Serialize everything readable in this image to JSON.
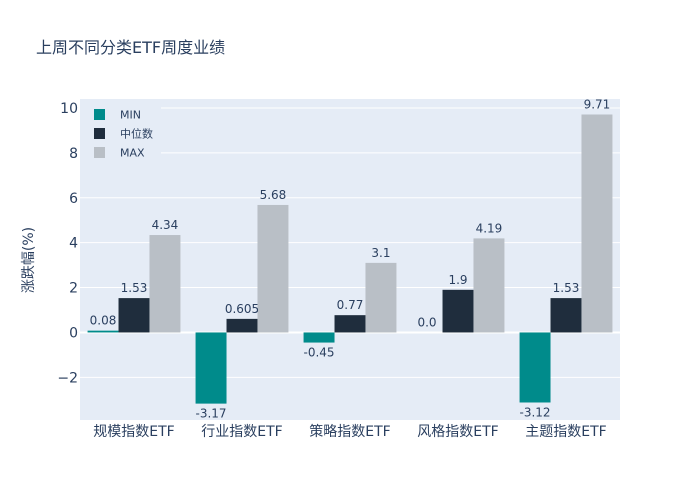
{
  "chart_data": {
    "type": "bar",
    "title": "上周不同分类ETF周度业绩",
    "xlabel": "",
    "ylabel": "涨跌幅(%)",
    "ylim": [
      -3.9,
      10.4
    ],
    "yticks": [
      -2,
      0,
      2,
      4,
      6,
      8,
      10
    ],
    "ytick_labels": [
      "−2",
      "0",
      "2",
      "4",
      "6",
      "8",
      "10"
    ],
    "grid": true,
    "legend_position": "top-left",
    "categories": [
      "规模指数ETF",
      "行业指数ETF",
      "策略指数ETF",
      "风格指数ETF",
      "主题指数ETF"
    ],
    "series": [
      {
        "name": "MIN",
        "color": "#008b8b",
        "values": [
          0.08,
          -3.17,
          -0.45,
          0.0,
          -3.12
        ],
        "labels": [
          "0.08",
          "-3.17",
          "-0.45",
          "0.0",
          "-3.12"
        ]
      },
      {
        "name": "中位数",
        "color": "#1f2d3d",
        "values": [
          1.53,
          0.605,
          0.77,
          1.9,
          1.53
        ],
        "labels": [
          "1.53",
          "0.605",
          "0.77",
          "1.9",
          "1.53"
        ]
      },
      {
        "name": "MAX",
        "color": "#b9bfc6",
        "values": [
          4.34,
          5.68,
          3.1,
          4.19,
          9.71
        ],
        "labels": [
          "4.34",
          "5.68",
          "3.1",
          "4.19",
          "9.71"
        ]
      }
    ]
  },
  "colors": {
    "plot_bg": "#e5ecf6",
    "grid": "#ffffff",
    "text": "#2a3f5f"
  }
}
